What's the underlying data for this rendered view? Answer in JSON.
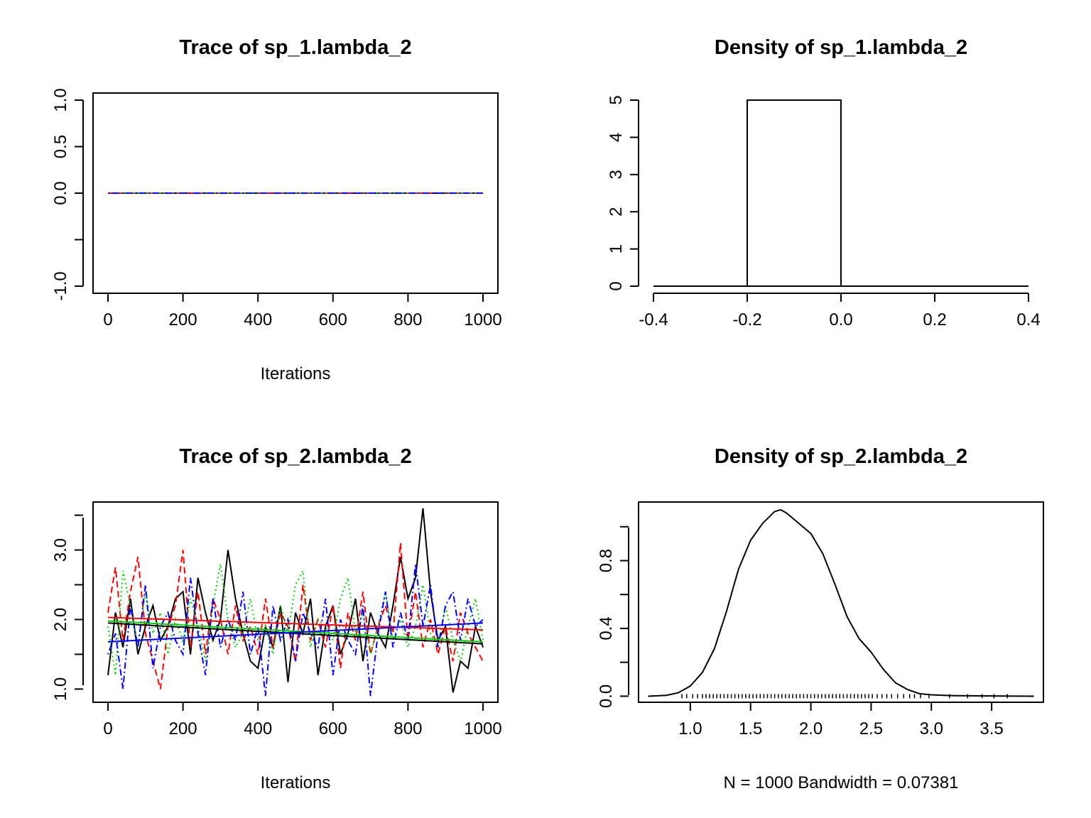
{
  "chart_data": [
    {
      "type": "line",
      "title": "Trace of sp_1.lambda_2",
      "xlabel": "Iterations",
      "ylabel": "",
      "xlim": [
        0,
        1000
      ],
      "ylim": [
        -1.0,
        1.0
      ],
      "xticks": [
        0,
        200,
        400,
        600,
        800,
        1000
      ],
      "x_tick_labels": [
        "0",
        "200",
        "400",
        "600",
        "800",
        "1000"
      ],
      "yticks": [
        -1.0,
        -0.5,
        0.0,
        0.5,
        1.0
      ],
      "y_tick_labels": [
        "-1.0",
        "",
        "0.0",
        "0.5",
        "1.0"
      ],
      "grid": false,
      "series": [
        {
          "color": "#000000",
          "dash": "solid",
          "x": [
            0,
            1000
          ],
          "values": [
            0.0,
            0.0
          ]
        },
        {
          "color": "#ff0000",
          "dash": "dashed",
          "x": [
            0,
            1000
          ],
          "values": [
            0.0,
            0.0
          ]
        },
        {
          "color": "#00cd00",
          "dash": "dotted",
          "x": [
            0,
            1000
          ],
          "values": [
            0.0,
            0.0
          ]
        },
        {
          "color": "#0000ff",
          "dash": "dotdash",
          "x": [
            0,
            1000
          ],
          "values": [
            0.0,
            0.0
          ]
        }
      ]
    },
    {
      "type": "bar",
      "title": "Density of sp_1.lambda_2",
      "xlabel": "",
      "ylabel": "",
      "xlim": [
        -0.4,
        0.4
      ],
      "ylim": [
        0,
        5
      ],
      "xticks": [
        -0.4,
        -0.2,
        0.0,
        0.2,
        0.4
      ],
      "x_tick_labels": [
        "-0.4",
        "-0.2",
        "0.0",
        "0.2",
        "0.4"
      ],
      "yticks": [
        0,
        1,
        2,
        3,
        4,
        5
      ],
      "y_tick_labels": [
        "0",
        "1",
        "2",
        "3",
        "4",
        "5"
      ],
      "grid": false,
      "bins": [
        {
          "from": -0.4,
          "to": -0.2,
          "density": 0
        },
        {
          "from": -0.2,
          "to": 0.0,
          "density": 5
        },
        {
          "from": 0.0,
          "to": 0.4,
          "density": 0
        }
      ]
    },
    {
      "type": "line",
      "title": "Trace of sp_2.lambda_2",
      "xlabel": "Iterations",
      "ylabel": "",
      "xlim": [
        0,
        1000
      ],
      "ylim": [
        0.8,
        3.7
      ],
      "xticks": [
        0,
        200,
        400,
        600,
        800,
        1000
      ],
      "x_tick_labels": [
        "0",
        "200",
        "400",
        "600",
        "800",
        "1000"
      ],
      "yticks": [
        1.0,
        1.5,
        2.0,
        2.5,
        3.0,
        3.5
      ],
      "y_tick_labels": [
        "1.0",
        "",
        "2.0",
        "",
        "3.0",
        ""
      ],
      "grid": false,
      "series": [
        {
          "color": "#000000",
          "dash": "solid",
          "x": [
            0,
            20,
            40,
            60,
            80,
            100,
            120,
            140,
            160,
            180,
            200,
            220,
            240,
            260,
            280,
            300,
            320,
            340,
            360,
            380,
            400,
            420,
            440,
            460,
            480,
            500,
            520,
            540,
            560,
            580,
            600,
            620,
            640,
            660,
            680,
            700,
            720,
            740,
            760,
            780,
            800,
            820,
            840,
            860,
            880,
            900,
            920,
            940,
            960,
            980,
            1000
          ],
          "values": [
            1.2,
            2.1,
            1.6,
            2.3,
            1.5,
            1.9,
            2.2,
            1.7,
            1.9,
            2.3,
            2.4,
            1.5,
            2.6,
            2.1,
            1.7,
            2.0,
            3.0,
            2.3,
            1.8,
            1.4,
            1.3,
            1.9,
            1.6,
            2.2,
            1.1,
            2.1,
            1.8,
            2.3,
            1.2,
            1.9,
            2.2,
            1.5,
            1.8,
            2.3,
            1.4,
            2.1,
            1.8,
            1.6,
            2.2,
            2.9,
            2.3,
            2.6,
            3.6,
            2.4,
            1.7,
            1.9,
            0.95,
            1.4,
            1.3,
            1.9,
            1.6
          ]
        },
        {
          "color": "#ff0000",
          "dash": "dashed",
          "x": [
            0,
            20,
            40,
            60,
            80,
            100,
            120,
            140,
            160,
            180,
            200,
            220,
            240,
            260,
            280,
            300,
            320,
            340,
            360,
            380,
            400,
            420,
            440,
            460,
            480,
            500,
            520,
            540,
            560,
            580,
            600,
            620,
            640,
            660,
            680,
            700,
            720,
            740,
            760,
            780,
            800,
            820,
            840,
            860,
            880,
            900,
            920,
            940,
            960,
            980,
            1000
          ],
          "values": [
            2.1,
            2.75,
            1.7,
            2.4,
            2.9,
            1.8,
            1.4,
            1.0,
            1.9,
            2.2,
            3.0,
            1.6,
            2.4,
            1.5,
            2.3,
            2.0,
            1.5,
            2.2,
            1.7,
            1.9,
            1.5,
            2.3,
            1.6,
            2.1,
            1.9,
            1.4,
            2.5,
            1.7,
            2.0,
            1.6,
            2.2,
            1.3,
            2.1,
            1.7,
            2.4,
            1.5,
            1.9,
            2.2,
            1.8,
            3.1,
            1.7,
            2.4,
            1.6,
            2.0,
            1.5,
            1.9,
            1.4,
            2.1,
            1.8,
            1.6,
            1.4
          ]
        },
        {
          "color": "#00cd00",
          "dash": "dotted",
          "x": [
            0,
            20,
            40,
            60,
            80,
            100,
            120,
            140,
            160,
            180,
            200,
            220,
            240,
            260,
            280,
            300,
            320,
            340,
            360,
            380,
            400,
            420,
            440,
            460,
            480,
            500,
            520,
            540,
            560,
            580,
            600,
            620,
            640,
            660,
            680,
            700,
            720,
            740,
            760,
            780,
            800,
            820,
            840,
            860,
            880,
            900,
            920,
            940,
            960,
            980,
            1000
          ],
          "values": [
            1.9,
            1.2,
            2.7,
            2.2,
            1.6,
            2.4,
            1.8,
            2.1,
            1.5,
            2.0,
            1.7,
            2.3,
            1.9,
            1.4,
            2.2,
            2.8,
            2.0,
            1.6,
            1.8,
            2.3,
            1.7,
            1.9,
            1.5,
            2.2,
            1.8,
            2.5,
            2.7,
            1.6,
            2.0,
            1.9,
            1.7,
            2.3,
            2.6,
            1.8,
            2.1,
            1.5,
            1.9,
            2.4,
            1.7,
            2.0,
            1.6,
            1.9,
            2.5,
            1.8,
            1.6,
            2.2,
            1.7,
            1.4,
            1.9,
            2.3,
            1.7
          ]
        },
        {
          "color": "#0000ff",
          "dash": "dotdash",
          "x": [
            0,
            20,
            40,
            60,
            80,
            100,
            120,
            140,
            160,
            180,
            200,
            220,
            240,
            260,
            280,
            300,
            320,
            340,
            360,
            380,
            400,
            420,
            440,
            460,
            480,
            500,
            520,
            540,
            560,
            580,
            600,
            620,
            640,
            660,
            680,
            700,
            720,
            740,
            760,
            780,
            800,
            820,
            840,
            860,
            880,
            900,
            920,
            940,
            960,
            980,
            1000
          ],
          "values": [
            1.5,
            1.8,
            1.0,
            2.2,
            1.6,
            2.5,
            1.3,
            1.9,
            2.1,
            1.7,
            1.5,
            2.6,
            1.8,
            1.2,
            2.3,
            1.6,
            2.0,
            1.7,
            2.4,
            1.5,
            1.9,
            0.9,
            2.2,
            1.7,
            2.0,
            1.4,
            2.1,
            1.8,
            1.6,
            2.3,
            1.2,
            2.0,
            1.7,
            1.5,
            2.2,
            0.9,
            1.8,
            2.4,
            1.6,
            2.1,
            1.7,
            2.8,
            1.9,
            2.5,
            1.6,
            2.2,
            2.4,
            1.7,
            2.3,
            1.9,
            2.0
          ]
        }
      ],
      "smooth_lines": [
        {
          "color": "#000000",
          "x": [
            0,
            1000
          ],
          "values": [
            1.95,
            1.65
          ]
        },
        {
          "color": "#ff0000",
          "x": [
            0,
            1000
          ],
          "values": [
            2.03,
            1.85
          ]
        },
        {
          "color": "#00cd00",
          "x": [
            0,
            1000
          ],
          "values": [
            1.98,
            1.68
          ]
        },
        {
          "color": "#0000ff",
          "x": [
            0,
            1000
          ],
          "values": [
            1.68,
            1.95
          ]
        }
      ]
    },
    {
      "type": "line",
      "title": "Density of sp_2.lambda_2",
      "xlabel": "N = 1000   Bandwidth = 0.07381",
      "ylabel": "",
      "xlim": [
        0.6,
        3.9
      ],
      "ylim": [
        -0.04,
        1.15
      ],
      "xticks": [
        1.0,
        1.5,
        2.0,
        2.5,
        3.0,
        3.5
      ],
      "x_tick_labels": [
        "1.0",
        "1.5",
        "2.0",
        "2.5",
        "3.0",
        "3.5"
      ],
      "yticks": [
        0.0,
        0.2,
        0.4,
        0.6,
        0.8,
        1.0
      ],
      "y_tick_labels": [
        "0.0",
        "",
        "0.4",
        "",
        "0.8",
        ""
      ],
      "grid": false,
      "series": [
        {
          "color": "#000000",
          "dash": "solid",
          "x": [
            0.65,
            0.8,
            0.9,
            1.0,
            1.1,
            1.2,
            1.3,
            1.4,
            1.5,
            1.6,
            1.7,
            1.75,
            1.8,
            1.9,
            2.0,
            2.1,
            2.2,
            2.3,
            2.4,
            2.5,
            2.6,
            2.7,
            2.8,
            2.9,
            3.0,
            3.1,
            3.2,
            3.4,
            3.6,
            3.85
          ],
          "values": [
            0.0,
            0.005,
            0.02,
            0.06,
            0.14,
            0.28,
            0.5,
            0.75,
            0.92,
            1.02,
            1.09,
            1.1,
            1.08,
            1.02,
            0.96,
            0.84,
            0.66,
            0.47,
            0.34,
            0.26,
            0.16,
            0.08,
            0.04,
            0.015,
            0.008,
            0.005,
            0.003,
            0.002,
            0.001,
            0.0
          ]
        }
      ],
      "rug": [
        0.93,
        0.97,
        1.02,
        1.06,
        1.1,
        1.13,
        1.16,
        1.19,
        1.22,
        1.25,
        1.28,
        1.31,
        1.34,
        1.37,
        1.4,
        1.43,
        1.46,
        1.49,
        1.52,
        1.55,
        1.58,
        1.61,
        1.64,
        1.67,
        1.7,
        1.73,
        1.76,
        1.79,
        1.82,
        1.85,
        1.88,
        1.91,
        1.94,
        1.97,
        2.0,
        2.03,
        2.06,
        2.09,
        2.12,
        2.15,
        2.18,
        2.21,
        2.24,
        2.27,
        2.3,
        2.33,
        2.36,
        2.39,
        2.42,
        2.45,
        2.48,
        2.51,
        2.55,
        2.59,
        2.63,
        2.67,
        2.72,
        2.77,
        2.82,
        2.86,
        2.91,
        2.98,
        3.15,
        3.3,
        3.42,
        3.52,
        3.63
      ]
    }
  ]
}
